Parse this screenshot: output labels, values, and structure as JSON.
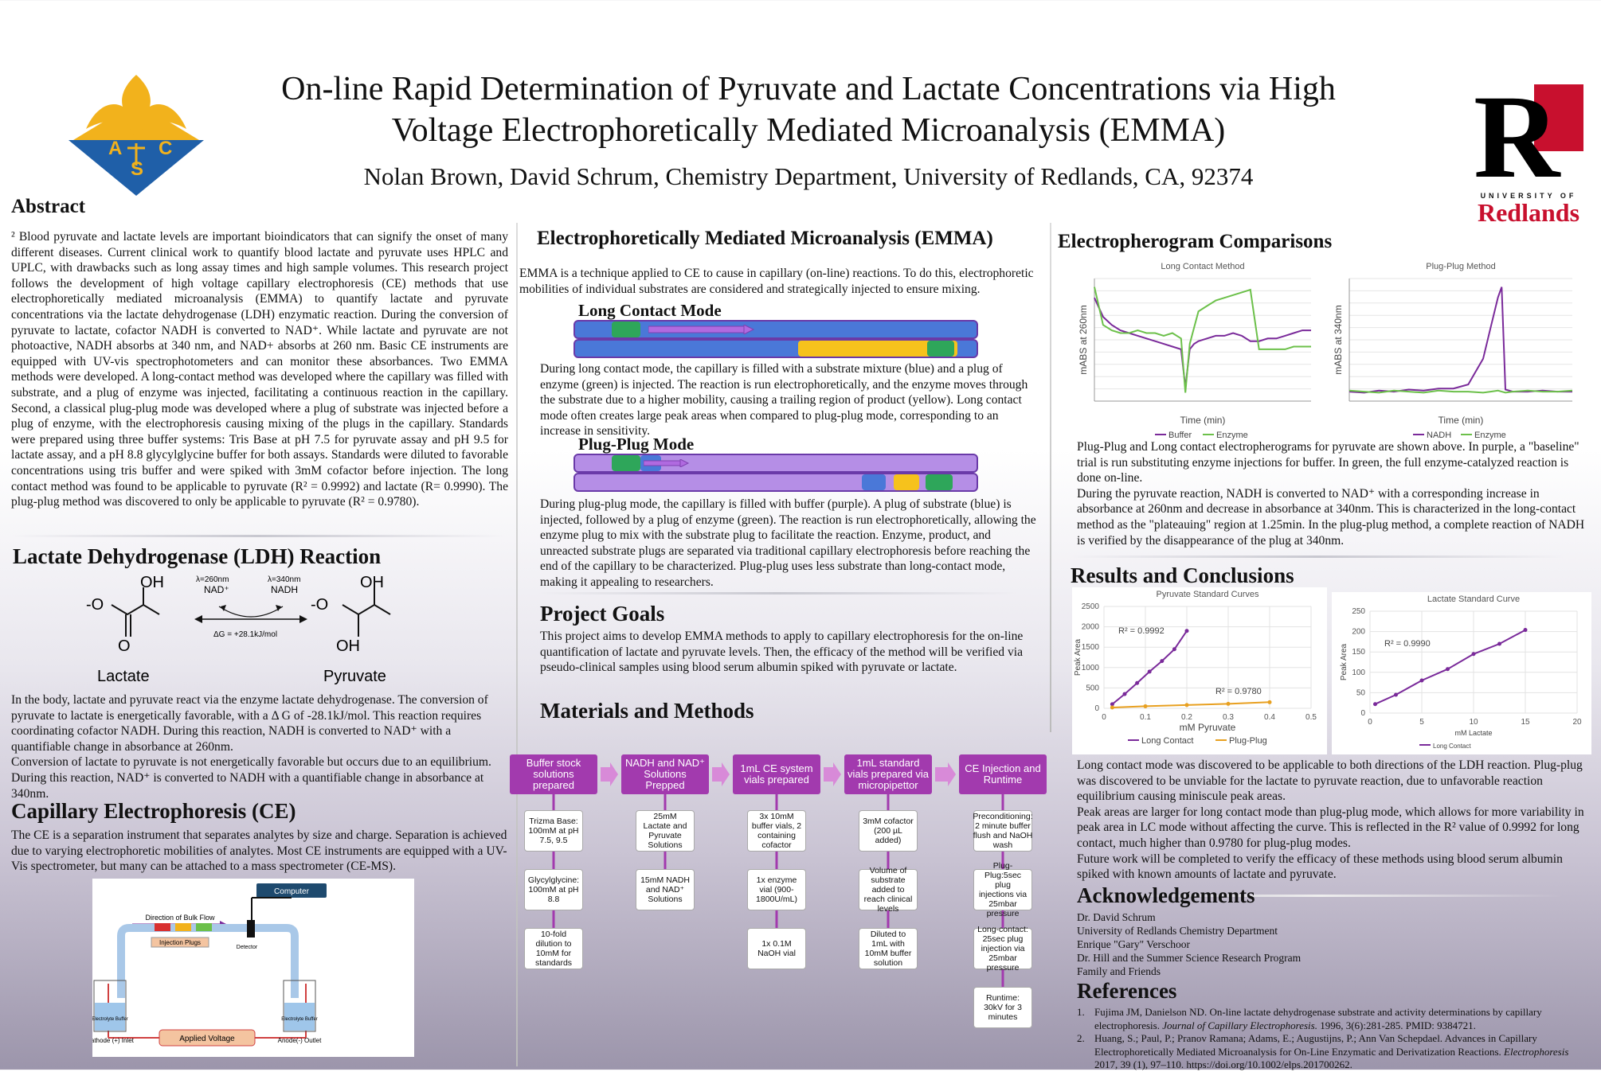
{
  "header": {
    "title_line1": "On-line Rapid Determination of Pyruvate and Lactate Concentrations via High",
    "title_line2": "Voltage Electrophoretically Mediated Microanalysis (EMMA)",
    "authors": "Nolan Brown, David Schrum, Chemistry Department, University of Redlands, CA, 92374",
    "acs_letters": [
      "A",
      "C",
      "S"
    ],
    "redlands_small": "UNIVERSITY OF",
    "redlands_big": "Redlands"
  },
  "abstract": {
    "heading": "Abstract",
    "text": "² Blood pyruvate and lactate levels are important bioindicators that can signify the onset of many different diseases. Current clinical work to quantify blood lactate and pyruvate uses HPLC and UPLC, with drawbacks such as long assay times and high sample volumes. This research project follows the development of high voltage capillary electrophoresis (CE) methods that use electrophoretically mediated microanalysis (EMMA) to quantify lactate and pyruvate concentrations via the lactate dehydrogenase (LDH) enzymatic reaction. During the conversion of pyruvate to lactate, cofactor NADH is converted to NAD⁺. While lactate and pyruvate are not photoactive, NADH absorbs at 340 nm, and NAD+ absorbs at 260 nm. Basic CE instruments are equipped with UV-vis spectrophotometers and can monitor these absorbances. Two EMMA methods were developed. A long-contact method was developed where the capillary was filled with substrate, and a plug of enzyme was injected, facilitating a continuous reaction in the capillary. Second, a classical plug-plug mode was developed where a plug of substrate was injected before a plug of enzyme, with the electrophoresis causing mixing of the plugs in the capillary. Standards were prepared using three buffer systems: Tris Base at pH 7.5 for pyruvate assay and pH 9.5 for lactate assay, and a pH 8.8 glycylglycine buffer for both assays. Standards were diluted to favorable concentrations using tris buffer and were spiked with 3mM cofactor before injection. The long contact method was found to be applicable to pyruvate (R² = 0.9992) and lactate (R= 0.9990). The plug-plug method was discovered to only be applicable to pyruvate (R² = 0.9780)."
  },
  "ldh": {
    "heading": "Lactate Dehydrogenase (LDH) Reaction",
    "lactate_label": "Lactate",
    "pyruvate_label": "Pyruvate",
    "oh": "OH",
    "o": "O",
    "o_minus": "-O",
    "lambda1": "λ=260nm",
    "nad_plus": "NAD⁺",
    "lambda2": "λ=340nm",
    "nadh": "NADH",
    "dg": "ΔG = +28.1kJ/mol",
    "p1": "In the body, lactate and pyruvate react via the enzyme lactate dehydrogenase. The conversion of pyruvate to lactate is energetically favorable, with a Δ G of  -28.1kJ/mol. This reaction requires coordinating cofactor NADH. During this reaction, NADH is converted to NAD⁺ with a quantifiable change in absorbance at 260nm.",
    "p2": "Conversion of lactate to pyruvate is not energetically favorable but occurs due to an equilibrium. During this reaction, NAD⁺ is converted to NADH with a quantifiable change in absorbance at 340nm."
  },
  "ce": {
    "heading": "Capillary Electrophoresis (CE)",
    "text": "The CE is a separation instrument that separates analytes by size and charge. Separation is achieved due to varying electrophoretic mobilities of analytes. Most CE instruments are equipped with a UV-Vis spectrometer, but many can be attached to a mass spectrometer (CE-MS).",
    "diagram": {
      "computer": "Computer",
      "bulk_flow": "Direction of Bulk Flow",
      "injection_plugs": "Injection Plugs",
      "detector": "Detector",
      "electrolyte": "Electrolyte Buffer",
      "cathode": "Cathode (+) Inlet",
      "anode": "Anode(-) Outlet",
      "voltage": "Applied Voltage"
    }
  },
  "emma": {
    "heading": "Electrophoretically Mediated Microanalysis (EMMA)",
    "intro": "EMMA is a technique applied to CE to cause in capillary (on-line) reactions. To do this, electrophoretic mobilities of individual substrates are considered and strategically injected to ensure mixing.",
    "long_heading": "Long Contact Mode",
    "long_text": "During long contact mode, the capillary is filled with a substrate mixture (blue) and a plug of enzyme (green) is injected. The reaction is run electrophoretically, and the enzyme moves through the substrate due to a higher mobility, causing a trailing region of product (yellow). Long contact mode often creates large peak areas when compared to plug-plug mode, corresponding to an increase in sensitivity.",
    "plug_heading": "Plug-Plug Mode",
    "plug_text": "During plug-plug mode, the capillary is filled with buffer (purple). A plug of substrate (blue) is injected, followed by a plug of enzyme (green). The reaction is run electrophoretically, allowing the enzyme plug to mix with the substrate plug to facilitate the reaction. Enzyme, product, and unreacted substrate plugs are separated via traditional capillary electrophoresis before reaching the end of the capillary to be characterized. Plug-plug uses less substrate than long-contact mode, making it appealing to researchers."
  },
  "goals": {
    "heading": "Project Goals",
    "text": "This project aims to develop EMMA methods to apply to capillary electrophoresis for the on-line quantification of lactate and pyruvate levels. Then, the efficacy of the method will be verified via pseudo-clinical samples using blood serum albumin spiked with pyruvate or lactate."
  },
  "methods": {
    "heading": "Materials and Methods",
    "columns": [
      {
        "title": "Buffer stock solutions prepared",
        "items": [
          "Trizma Base: 100mM at pH 7.5, 9.5",
          "Glycylglycine: 100mM at pH 8.8",
          "10-fold dilution to 10mM for standards"
        ]
      },
      {
        "title": "NADH and NAD⁺ Solutions Prepped",
        "items": [
          "25mM Lactate and Pyruvate Solutions",
          "15mM NADH and NAD⁺ Solutions"
        ]
      },
      {
        "title": "1mL CE system vials prepared",
        "items": [
          "3x 10mM buffer vials, 2 containing cofactor",
          "1x enzyme vial (900-1800U/mL)",
          "1x 0.1M NaOH vial"
        ]
      },
      {
        "title": "1mL standard vials prepared via micropipettor",
        "items": [
          "3mM cofactor (200 µL added)",
          "Volume of substrate added to reach clinical levels",
          "Diluted to 1mL with 10mM buffer solution"
        ]
      },
      {
        "title": "CE Injection and Runtime",
        "items": [
          "Preconditioning: 2 minute buffer flush and NaOH wash",
          "Plug-Plug:5sec plug injections via 25mbar pressure",
          "Long-contact: 25sec plug injection via 25mbar pressure",
          "Runtime: 30kV for 3 minutes"
        ]
      }
    ]
  },
  "electro": {
    "heading": "Electropherogram Comparisons",
    "caption1": "Plug-Plug and Long contact electropherograms for pyruvate are shown above. In purple, a \"baseline\" trial is run substituting enzyme injections for buffer. In green, the full enzyme-catalyzed reaction is done on-line.",
    "caption2": "During the pyruvate reaction, NADH is converted to NAD⁺ with a corresponding increase in absorbance at 260nm and decrease in absorbance at 340nm. This is characterized in the long-contact method as the \"plateauing\" region at 1.25min. In the plug-plug method, a complete reaction of NADH is verified by the disappearance of the plug at 340nm."
  },
  "chart_data": [
    {
      "type": "line",
      "title": "Long Contact Method",
      "xlabel": "Time (min)",
      "ylabel": "mABS at 260nm",
      "x": [
        0,
        0.1,
        0.2,
        0.3,
        0.4,
        0.5,
        0.6,
        0.7,
        0.8,
        0.9,
        1.0,
        1.05,
        1.1,
        1.15,
        1.2,
        1.3,
        1.4,
        1.5,
        1.6,
        1.7,
        1.8,
        1.9,
        2.0,
        2.1,
        2.2,
        2.3,
        2.4,
        2.5
      ],
      "series": [
        {
          "name": "Buffer",
          "color": "#7a2a9a",
          "values": [
            27,
            20,
            17,
            15,
            14,
            13,
            12,
            11,
            10,
            9,
            8,
            -6,
            8,
            10,
            11,
            12,
            13,
            13,
            14,
            13,
            11,
            11,
            12,
            12,
            13,
            14,
            15,
            15
          ]
        },
        {
          "name": "Enzyme",
          "color": "#6cc04a",
          "values": [
            31,
            17,
            15,
            14,
            14,
            15,
            14,
            14,
            13,
            14,
            12,
            -8,
            10,
            16,
            22,
            24,
            26,
            27,
            28,
            29,
            30,
            8,
            8,
            8,
            8,
            9,
            9,
            9
          ]
        }
      ]
    },
    {
      "type": "line",
      "title": "Plug-Plug Method",
      "xlabel": "Time (min)",
      "ylabel": "mABS at 340nm",
      "x": [
        0,
        0.2,
        0.4,
        0.6,
        0.8,
        1.0,
        1.2,
        1.4,
        1.6,
        1.8,
        1.9,
        2.0,
        2.05,
        2.1,
        2.2,
        2.4,
        2.6,
        2.8,
        3.0
      ],
      "series": [
        {
          "name": "NADH",
          "color": "#7a2a9a",
          "values": [
            0.3,
            0.2,
            0.4,
            0.3,
            0.5,
            0.4,
            0.6,
            0.6,
            1.0,
            3.5,
            6.5,
            9.5,
            10.5,
            0.5,
            0.3,
            0.3,
            0.4,
            0.3,
            0.3
          ]
        },
        {
          "name": "Enzyme",
          "color": "#6cc04a",
          "values": [
            0.4,
            0.3,
            0.2,
            0.4,
            0.3,
            0.2,
            0.4,
            0.3,
            0.3,
            0.2,
            0.3,
            0.4,
            0.3,
            0.2,
            0.3,
            0.4,
            0.3,
            0.3,
            0.4
          ]
        }
      ]
    },
    {
      "type": "scatter",
      "title": "Pyruvate Standard Curves",
      "xlabel": "mM Pyruvate",
      "ylabel": "Peak Area",
      "xlim": [
        0,
        0.5
      ],
      "ylim": [
        0,
        2500
      ],
      "xticks": [
        "0",
        "0.1",
        "0.2",
        "0.3",
        "0.4",
        "0.5"
      ],
      "yticks": [
        "0",
        "500",
        "1000",
        "1500",
        "2000",
        "2500"
      ],
      "annotations": [
        "R² = 0.9992",
        "R² = 0.9780"
      ],
      "series": [
        {
          "name": "Long Contact",
          "color": "#7a2a9a",
          "x": [
            0.02,
            0.05,
            0.08,
            0.11,
            0.14,
            0.17,
            0.2
          ],
          "y": [
            100,
            350,
            620,
            900,
            1160,
            1450,
            1900
          ]
        },
        {
          "name": "Plug-Plug",
          "color": "#e8a020",
          "x": [
            0.02,
            0.1,
            0.2,
            0.3,
            0.4
          ],
          "y": [
            20,
            50,
            80,
            110,
            150
          ]
        }
      ]
    },
    {
      "type": "scatter",
      "title": "Lactate Standard Curve",
      "xlabel": "mM Lactate",
      "ylabel": "Peak Area",
      "xlim": [
        0,
        20
      ],
      "ylim": [
        0,
        250
      ],
      "xticks": [
        "0",
        "5",
        "10",
        "15",
        "20"
      ],
      "yticks": [
        "0",
        "50",
        "100",
        "150",
        "200",
        "250"
      ],
      "annotations": [
        "R² = 0.9990"
      ],
      "series": [
        {
          "name": "Long Contact",
          "color": "#7a2a9a",
          "x": [
            0.5,
            2.5,
            5,
            7.5,
            10,
            12.5,
            15
          ],
          "y": [
            22,
            45,
            80,
            108,
            145,
            170,
            204
          ]
        }
      ]
    }
  ],
  "results": {
    "heading": "Results and Conclusions",
    "p1": "Long contact mode was discovered to be applicable to both directions of the LDH reaction. Plug-plug was discovered to be unviable for the lactate to pyruvate reaction, due to unfavorable reaction equilibrium causing miniscule peak areas.",
    "p2": "Peak areas are larger for long contact mode than plug-plug mode, which allows for more variability in peak area in LC mode without affecting the curve. This is reflected in the R² value of 0.9992 for long contact, much higher than 0.9780 for plug-plug modes.",
    "p3": "Future work will be completed to verify the efficacy of these methods using blood serum albumin spiked with known amounts of lactate and pyruvate."
  },
  "ack": {
    "heading": "Acknowledgements",
    "lines": [
      "Dr. David Schrum",
      "University of Redlands Chemistry Department",
      "Enrique \"Gary\" Verschoor",
      "Dr. Hill and the Summer Science Research Program",
      "Family and Friends"
    ]
  },
  "refs": {
    "heading": "References",
    "r1_main": "Fujima JM, Danielson ND. On-line lactate dehydrogenase substrate and activity determinations by capillary electrophoresis.",
    "r1_journal": "Journal of Capillary Electrophoresis.",
    "r1_tail": "1996, 3(6):281-285. PMID: 9384721.",
    "r2_main": "Huang, S.; Paul, P.; Pranov Ramana; Adams, E.; Augustijns, P.; Ann Van Schepdael. Advances in Capillary Electrophoretically Mediated Microanalysis for On-Line Enzymatic and Derivatization Reactions.",
    "r2_journal": "Electrophoresis",
    "r2_tail": "2017, 39 (1), 97–110. https://doi.org/10.1002/elps.201700262."
  }
}
